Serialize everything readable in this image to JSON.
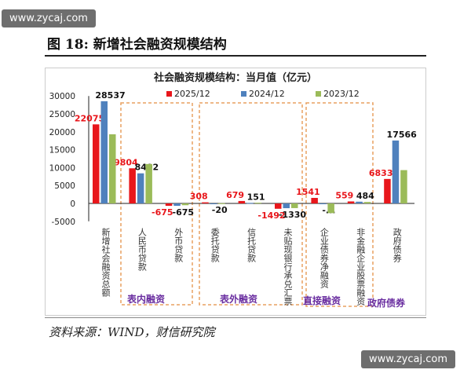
{
  "watermark": "www.zycaj.com",
  "figure_title": "图 18:  新增社会融资规模结构",
  "source": "资料来源：WIND，财信研究院",
  "chart_data": {
    "type": "bar",
    "title": "社会融资规模结构：当月值（亿元）",
    "categories": [
      "新增社会融资总额",
      "人民币贷款",
      "外币贷款",
      "委托贷款",
      "信托贷款",
      "未贴现银行承兑汇票",
      "企业债券净融资",
      "非金融企业股票融资",
      "政府债券"
    ],
    "series": [
      {
        "name": "2025/12",
        "color": "#e8161b",
        "values": [
          22075,
          9804,
          -675,
          308,
          679,
          -1492,
          1541,
          559,
          6833
        ],
        "labels": [
          "22075",
          "9804",
          "-675",
          "308",
          "679",
          "-1492",
          "1541",
          "559",
          "6833"
        ]
      },
      {
        "name": "2024/12",
        "color": "#4f81bd",
        "values": [
          28537,
          8402,
          -675,
          -20,
          151,
          -1330,
          -100,
          484,
          17566
        ],
        "labels": [
          "28537",
          "8402",
          "-675",
          "-20",
          "151",
          "-1330",
          "-...",
          "484",
          "17566"
        ]
      },
      {
        "name": "2023/12",
        "color": "#9bbb59",
        "values": [
          19300,
          11000,
          -500,
          50,
          200,
          -1300,
          -2700,
          400,
          9300
        ]
      }
    ],
    "ylim": [
      -5000,
      30000
    ],
    "yticks": [
      -5000,
      0,
      5000,
      10000,
      15000,
      20000,
      25000,
      30000
    ],
    "legend": "top",
    "groups": [
      "表内融资",
      "表外融资",
      "直接融资",
      "政府债券"
    ]
  }
}
